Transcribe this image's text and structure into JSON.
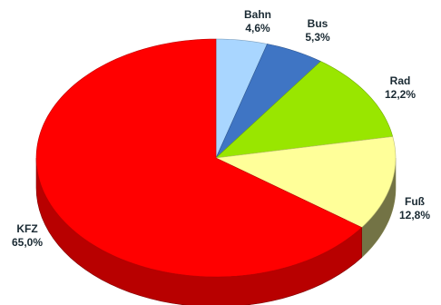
{
  "chart_data": {
    "type": "pie",
    "style": "3d",
    "title": "",
    "slices": [
      {
        "label": "Bahn",
        "value": 4.6,
        "value_label": "4,6%",
        "color": "#a9d6ff"
      },
      {
        "label": "Bus",
        "value": 5.3,
        "value_label": "5,3%",
        "color": "#3f75c4"
      },
      {
        "label": "Rad",
        "value": 12.2,
        "value_label": "12,2%",
        "color": "#99e600"
      },
      {
        "label": "Fuß",
        "value": 12.8,
        "value_label": "12,8%",
        "color": "#ffff99"
      },
      {
        "label": "KFZ",
        "value": 65.0,
        "value_label": "65,0%",
        "color": "#ff0000"
      }
    ]
  }
}
